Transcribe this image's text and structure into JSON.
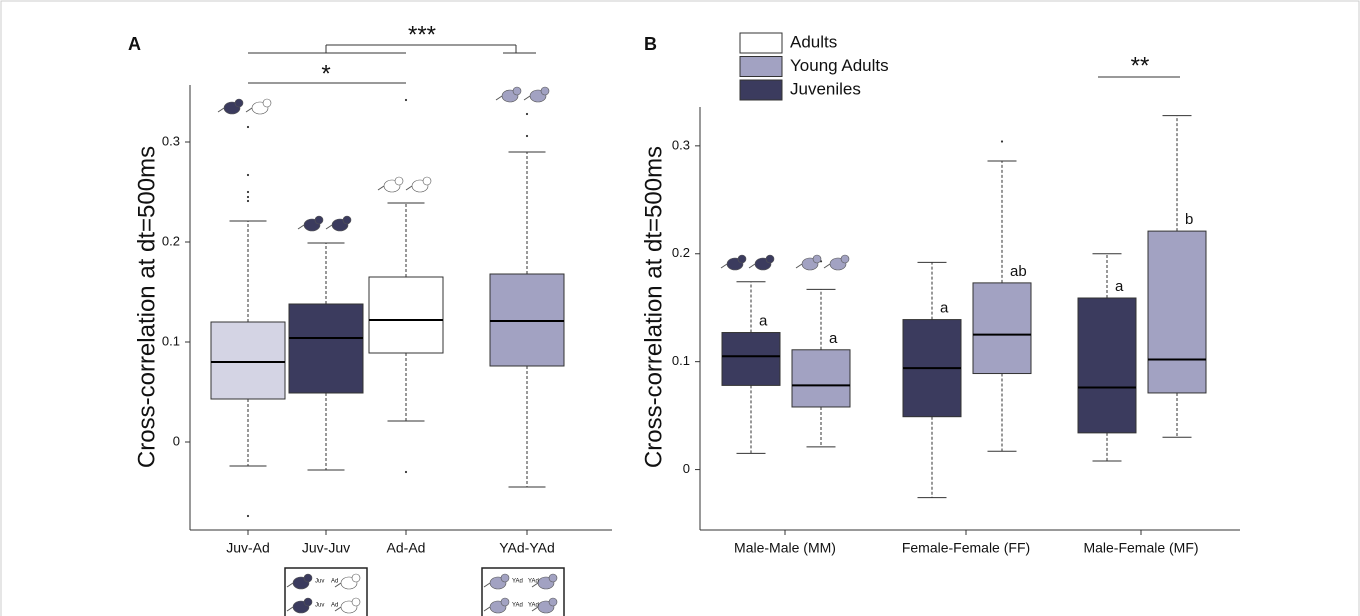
{
  "chart_data": [
    {
      "type": "box",
      "panel": "A",
      "y_label": "Cross-correlation at dt=500ms",
      "categories": [
        "Juv-Ad",
        "Juv-Juv",
        "Ad-Ad",
        "YAd-YAd"
      ],
      "colors": [
        "#d4d4e4",
        "#3b3b5e",
        "#ffffff",
        "#a2a2c2"
      ],
      "whisker_low": [
        -0.024,
        -0.028,
        0.021,
        -0.045
      ],
      "q1": [
        0.043,
        0.049,
        0.089,
        0.076
      ],
      "median": [
        0.08,
        0.104,
        0.122,
        0.121
      ],
      "q3": [
        0.12,
        0.138,
        0.165,
        0.168
      ],
      "whisker_high": [
        0.221,
        0.199,
        0.239,
        0.29
      ],
      "outliers": [
        [
          0.315,
          0.267,
          0.25,
          0.245,
          0.241,
          -0.074
        ],
        [],
        [
          0.342,
          -0.03
        ],
        [
          0.328,
          0.306
        ]
      ],
      "annotations": [
        "***",
        "*"
      ],
      "insets": [
        {
          "labels": [
            "Juv",
            "Ad",
            "Juv",
            "Ad"
          ]
        },
        {
          "labels": [
            "YAd",
            "YAd",
            "YAd",
            "YAd"
          ]
        }
      ],
      "ylim": [
        -0.088,
        0.357
      ],
      "yticks": [
        0,
        0.1,
        0.2,
        0.3
      ]
    },
    {
      "type": "box",
      "panel": "B",
      "y_label": "Cross-correlation at dt=500ms",
      "categories": [
        "Male-Male (MM)",
        "Female-Female (FF)",
        "Male-Female (MF)"
      ],
      "series": [
        {
          "name": "Adults",
          "color": "#ffffff"
        },
        {
          "name": "Young Adults",
          "color": "#a2a2c2",
          "whisker_low": [
            0.021,
            0.017,
            0.03
          ],
          "q1": [
            0.058,
            0.089,
            0.071
          ],
          "median": [
            0.078,
            0.125,
            0.102
          ],
          "q3": [
            0.111,
            0.173,
            0.221
          ],
          "whisker_high": [
            0.167,
            0.286,
            0.328
          ],
          "outliers": [
            [
              0.193
            ],
            [
              0.304
            ],
            []
          ],
          "letters": [
            "a",
            "ab",
            "b"
          ]
        },
        {
          "name": "Juveniles",
          "color": "#3b3b5e",
          "whisker_low": [
            0.015,
            -0.026,
            0.008
          ],
          "q1": [
            0.078,
            0.049,
            0.034
          ],
          "median": [
            0.105,
            0.094,
            0.076
          ],
          "q3": [
            0.127,
            0.139,
            0.159
          ],
          "whisker_high": [
            0.174,
            0.192,
            0.2
          ],
          "outliers": [
            [],
            [],
            []
          ],
          "letters": [
            "a",
            "a",
            "a"
          ]
        }
      ],
      "annotations": [
        "**"
      ],
      "ylim": [
        -0.056,
        0.336
      ],
      "yticks": [
        0,
        0.1,
        0.2,
        0.3
      ]
    }
  ]
}
